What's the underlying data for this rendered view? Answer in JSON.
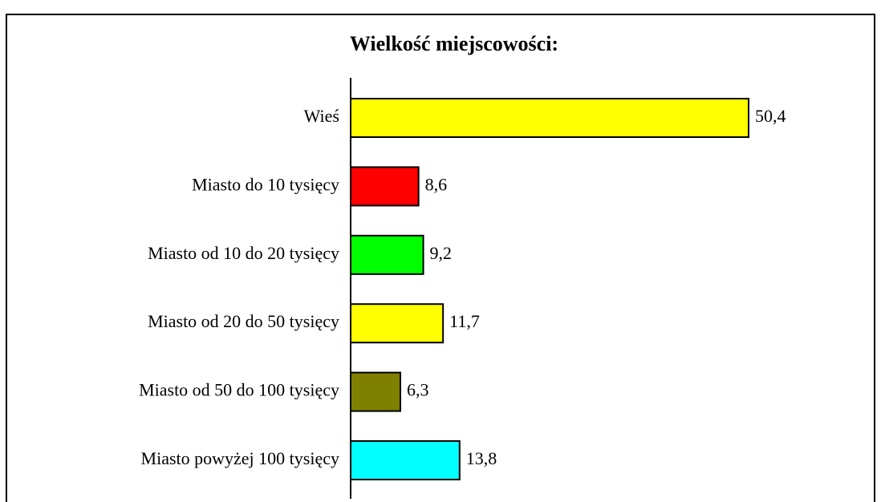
{
  "chart_data": {
    "type": "bar",
    "orientation": "horizontal",
    "title": "Wielkość  miejscowości:",
    "categories": [
      "Wieś",
      "Miasto do 10 tysięcy",
      "Miasto od 10 do 20 tysięcy",
      "Miasto od 20 do 50 tysięcy",
      "Miasto od 50 do 100 tysięcy",
      "Miasto powyżej 100 tysięcy"
    ],
    "values": [
      50.4,
      8.6,
      9.2,
      11.7,
      6.3,
      13.8
    ],
    "value_labels": [
      "50,4",
      "8,6",
      "9,2",
      "11,7",
      "6,3",
      "13,8"
    ],
    "colors": [
      "#ffff00",
      "#ff0000",
      "#00ff00",
      "#ffff00",
      "#808000",
      "#00ffff"
    ]
  }
}
